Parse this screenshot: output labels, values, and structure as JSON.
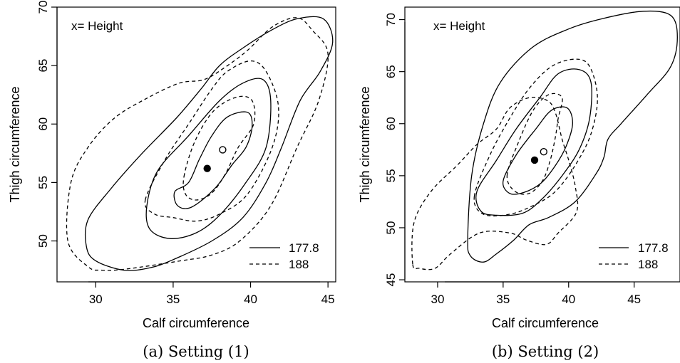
{
  "chart_data": [
    {
      "type": "contour",
      "panel": "a",
      "annotation": "x= Height",
      "xlabel": "Calf circumference",
      "ylabel": "Thigh circumference",
      "xlim": [
        27.5,
        45.5
      ],
      "ylim": [
        46.5,
        70
      ],
      "xticks": [
        30,
        35,
        40,
        45
      ],
      "yticks": [
        50,
        55,
        60,
        65,
        70
      ],
      "caption": "(a) Setting (1)",
      "legend": {
        "placement": "bottom-right",
        "entries": [
          {
            "label": "177.8",
            "style": "solid"
          },
          {
            "label": "188",
            "style": "dashed"
          }
        ]
      },
      "centers": [
        {
          "style": "filled",
          "x": 37.2,
          "y": 56.2
        },
        {
          "style": "open",
          "x": 38.2,
          "y": 57.8
        }
      ],
      "series": [
        {
          "name": "177.8",
          "style": "solid",
          "level": "inner",
          "points": [
            [
              36,
              55
            ],
            [
              36.7,
              57
            ],
            [
              37.5,
              59
            ],
            [
              38.5,
              60.6
            ],
            [
              39.8,
              61
            ],
            [
              40.1,
              59.8
            ],
            [
              39.7,
              58
            ],
            [
              38.8,
              56.5
            ],
            [
              37.7,
              54.5
            ],
            [
              36.2,
              52.9
            ],
            [
              35.3,
              53
            ],
            [
              35.1,
              54.2
            ]
          ]
        },
        {
          "name": "177.8",
          "style": "solid",
          "level": "middle",
          "points": [
            [
              33.3,
              53
            ],
            [
              34,
              56
            ],
            [
              36,
              59
            ],
            [
              38,
              62
            ],
            [
              39.5,
              63.5
            ],
            [
              40.8,
              63.8
            ],
            [
              41.3,
              62
            ],
            [
              41,
              58
            ],
            [
              39.7,
              55
            ],
            [
              38,
              52.2
            ],
            [
              36.5,
              50.7
            ],
            [
              34.8,
              50.2
            ],
            [
              33.5,
              51
            ]
          ]
        },
        {
          "name": "177.8",
          "style": "solid",
          "level": "outer",
          "points": [
            [
              29.4,
              49.5
            ],
            [
              29.5,
              51.8
            ],
            [
              31,
              54.5
            ],
            [
              33,
              57.5
            ],
            [
              35.2,
              60.5
            ],
            [
              36.8,
              63
            ],
            [
              38,
              65
            ],
            [
              39.5,
              66.5
            ],
            [
              41.3,
              68
            ],
            [
              43,
              69
            ],
            [
              44.7,
              69
            ],
            [
              45.3,
              67
            ],
            [
              44.5,
              64.5
            ],
            [
              43.2,
              62
            ],
            [
              42,
              58
            ],
            [
              41,
              55
            ],
            [
              39.5,
              52
            ],
            [
              37.5,
              50
            ],
            [
              35,
              48.4
            ],
            [
              33.5,
              47.7
            ],
            [
              31.8,
              47.5
            ],
            [
              30,
              48.3
            ]
          ]
        },
        {
          "name": "188",
          "style": "dashed",
          "level": "inner",
          "points": [
            [
              35.7,
              55.5
            ],
            [
              36.4,
              58.5
            ],
            [
              37.6,
              61.1
            ],
            [
              39.1,
              62.3
            ],
            [
              40.1,
              62
            ],
            [
              40.2,
              60
            ],
            [
              39.2,
              58
            ],
            [
              38.4,
              55.8
            ],
            [
              37.5,
              54.1
            ],
            [
              36.5,
              53.5
            ],
            [
              35.8,
              54
            ]
          ]
        },
        {
          "name": "188",
          "style": "dashed",
          "level": "middle",
          "points": [
            [
              33.2,
              53.5
            ],
            [
              34.5,
              57
            ],
            [
              36,
              60
            ],
            [
              37.5,
              63
            ],
            [
              38.5,
              64.5
            ],
            [
              40,
              65.4
            ],
            [
              41,
              64.5
            ],
            [
              41.8,
              61.5
            ],
            [
              41.4,
              58
            ],
            [
              39.8,
              54
            ],
            [
              38,
              52.3
            ],
            [
              36.5,
              51.7
            ],
            [
              35,
              52
            ],
            [
              33.8,
              52.3
            ]
          ]
        },
        {
          "name": "188",
          "style": "dashed",
          "level": "outer",
          "points": [
            [
              28.2,
              50
            ],
            [
              28.4,
              55
            ],
            [
              29.5,
              58
            ],
            [
              31.2,
              60.5
            ],
            [
              33.3,
              62.2
            ],
            [
              35.4,
              63.5
            ],
            [
              37,
              63.8
            ],
            [
              38.4,
              64.9
            ],
            [
              39.8,
              66.3
            ],
            [
              41.4,
              68.3
            ],
            [
              43,
              69.1
            ],
            [
              44,
              68
            ],
            [
              45,
              66
            ],
            [
              44.4,
              62
            ],
            [
              43,
              58
            ],
            [
              41.3,
              53
            ],
            [
              39.3,
              50
            ],
            [
              37.5,
              48.8
            ],
            [
              35.5,
              48.3
            ],
            [
              32,
              47.6
            ],
            [
              30.4,
              47.5
            ],
            [
              29.5,
              47.8
            ]
          ]
        }
      ]
    },
    {
      "type": "contour",
      "panel": "b",
      "annotation": "x= Height",
      "xlabel": "Calf circumference",
      "ylabel": "Thigh circumference",
      "xlim": [
        27.5,
        48.5
      ],
      "ylim": [
        44.8,
        71.2
      ],
      "xticks": [
        30,
        35,
        40,
        45
      ],
      "yticks": [
        45,
        50,
        55,
        60,
        65,
        70
      ],
      "caption": "(b) Setting (2)",
      "legend": {
        "placement": "bottom-right",
        "entries": [
          {
            "label": "177.8",
            "style": "solid"
          },
          {
            "label": "188",
            "style": "dashed"
          }
        ]
      },
      "centers": [
        {
          "style": "filled",
          "x": 37.4,
          "y": 56.5
        },
        {
          "style": "open",
          "x": 38.1,
          "y": 57.3
        }
      ],
      "series": [
        {
          "name": "177.8",
          "style": "solid",
          "level": "inner",
          "points": [
            [
              35,
              54.5
            ],
            [
              36,
              57
            ],
            [
              37.5,
              59.5
            ],
            [
              38.7,
              61.3
            ],
            [
              39.9,
              61.5
            ],
            [
              40.3,
              60
            ],
            [
              39.8,
              57.8
            ],
            [
              39,
              56
            ],
            [
              37.9,
              54.3
            ],
            [
              36.6,
              53.4
            ],
            [
              35.5,
              53.3
            ]
          ]
        },
        {
          "name": "177.8",
          "style": "solid",
          "level": "middle",
          "points": [
            [
              33,
              53.5
            ],
            [
              34.5,
              56.5
            ],
            [
              36,
              59.5
            ],
            [
              37.8,
              62.5
            ],
            [
              39.2,
              64.8
            ],
            [
              40.8,
              65.2
            ],
            [
              41.7,
              64
            ],
            [
              41.6,
              60.5
            ],
            [
              40.8,
              57.5
            ],
            [
              39.5,
              55
            ],
            [
              38,
              52.8
            ],
            [
              36.5,
              51.4
            ],
            [
              34.5,
              51.2
            ],
            [
              33.3,
              51.6
            ]
          ]
        },
        {
          "name": "177.8",
          "style": "solid",
          "level": "outer",
          "points": [
            [
              32.3,
              49
            ],
            [
              32.6,
              55
            ],
            [
              33.5,
              60
            ],
            [
              34.8,
              64
            ],
            [
              37.2,
              67.3
            ],
            [
              40,
              69.1
            ],
            [
              42.6,
              70.1
            ],
            [
              45.7,
              70.8
            ],
            [
              47.8,
              70.4
            ],
            [
              48.3,
              68.3
            ],
            [
              47.8,
              65.5
            ],
            [
              46,
              62.8
            ],
            [
              44,
              60
            ],
            [
              43,
              58.5
            ],
            [
              42.7,
              56.8
            ],
            [
              42.1,
              55.2
            ],
            [
              40.5,
              52.5
            ],
            [
              38.5,
              51
            ],
            [
              37,
              50.3
            ],
            [
              35.8,
              48.8
            ],
            [
              34.5,
              47.5
            ],
            [
              33.5,
              46.7
            ],
            [
              32.5,
              47.3
            ]
          ]
        },
        {
          "name": "188",
          "style": "dashed",
          "level": "inner",
          "points": [
            [
              35.3,
              55
            ],
            [
              36.1,
              58
            ],
            [
              37.3,
              61.3
            ],
            [
              38.5,
              62.8
            ],
            [
              39.5,
              62.5
            ],
            [
              39.2,
              60.5
            ],
            [
              39,
              58.8
            ],
            [
              38.6,
              56.5
            ],
            [
              38,
              54.5
            ],
            [
              37,
              53.3
            ],
            [
              35.9,
              53.5
            ]
          ]
        },
        {
          "name": "188",
          "style": "dashed",
          "level": "middle",
          "points": [
            [
              32.8,
              53
            ],
            [
              34,
              57
            ],
            [
              35.5,
              60.5
            ],
            [
              37,
              63.4
            ],
            [
              38.7,
              65.5
            ],
            [
              40.5,
              66.2
            ],
            [
              41.6,
              65.5
            ],
            [
              42.2,
              62.5
            ],
            [
              41.7,
              59
            ],
            [
              40.5,
              56
            ],
            [
              39,
              53.5
            ],
            [
              37.4,
              52.2
            ],
            [
              35.5,
              51.3
            ],
            [
              33.5,
              51.3
            ]
          ]
        },
        {
          "name": "188",
          "style": "dashed",
          "level": "outer",
          "points": [
            [
              28.1,
              46.5
            ],
            [
              28.2,
              50.5
            ],
            [
              29.5,
              53.5
            ],
            [
              31.5,
              56
            ],
            [
              33,
              58
            ],
            [
              34.5,
              59.5
            ],
            [
              35.5,
              61.5
            ],
            [
              37,
              62.5
            ],
            [
              38.4,
              62.2
            ],
            [
              39,
              61
            ],
            [
              39.5,
              58.5
            ],
            [
              40,
              56.5
            ],
            [
              40.5,
              54
            ],
            [
              40.6,
              51.5
            ],
            [
              39.2,
              49.5
            ],
            [
              38.3,
              48.4
            ],
            [
              36.8,
              48.8
            ],
            [
              35.5,
              49.5
            ],
            [
              33.2,
              49.5
            ],
            [
              31,
              47.5
            ],
            [
              29.8,
              46.1
            ],
            [
              28.6,
              46.1
            ]
          ]
        }
      ]
    }
  ]
}
